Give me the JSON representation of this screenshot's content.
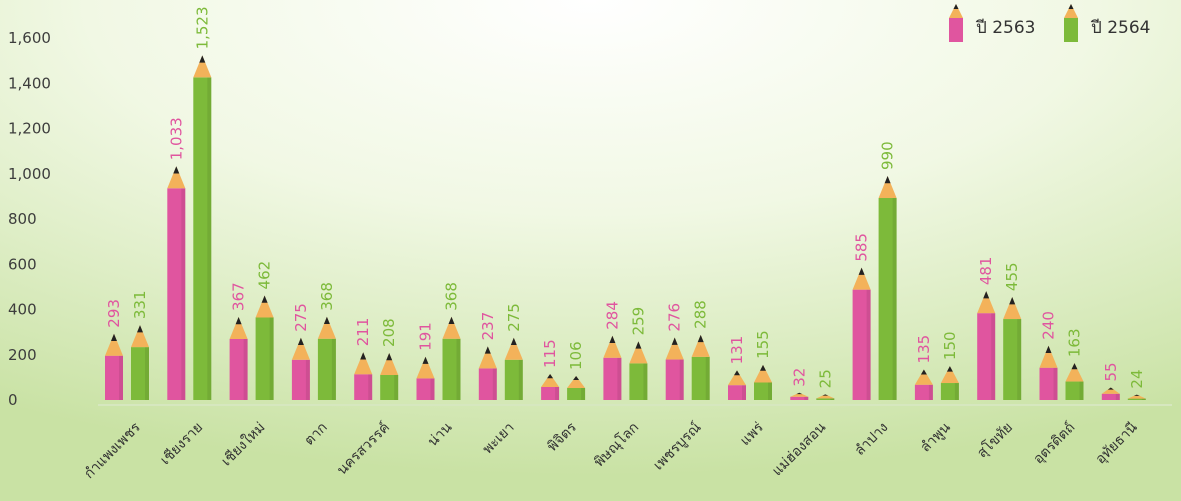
{
  "chart_data": {
    "type": "bar",
    "title": "",
    "xlabel": "",
    "ylabel": "",
    "ylim": [
      0,
      1600
    ],
    "yticks": [
      0,
      200,
      400,
      600,
      800,
      1000,
      1200,
      1400,
      1600
    ],
    "ytick_labels": [
      "0",
      "200",
      "400",
      "600",
      "800",
      "1,000",
      "1,200",
      "1,400",
      "1,600"
    ],
    "grid": false,
    "legend_position": "top-right",
    "bar_style": "pencil",
    "categories": [
      "กำแพงเพชร",
      "เชียงราย",
      "เชียงใหม่",
      "ตาก",
      "นครสวรรค์",
      "น่าน",
      "พะเยา",
      "พิจิตร",
      "พิษณุโลก",
      "เพชรบูรณ์",
      "แพร่",
      "แม่ฮ่องสอน",
      "ลำปาง",
      "ลำพูน",
      "สุโขทัย",
      "อุตรดิตถ์",
      "อุทัยธานี"
    ],
    "series": [
      {
        "name": "ปี 2563",
        "color": "#e0559f",
        "values": [
          293,
          1033,
          367,
          275,
          211,
          191,
          237,
          115,
          284,
          276,
          131,
          32,
          585,
          135,
          481,
          240,
          55
        ],
        "labels": [
          "293",
          "1,033",
          "367",
          "275",
          "211",
          "191",
          "237",
          "115",
          "284",
          "276",
          "131",
          "32",
          "585",
          "135",
          "481",
          "240",
          "55"
        ]
      },
      {
        "name": "ปี 2564",
        "color": "#7dba3a",
        "values": [
          331,
          1523,
          462,
          368,
          208,
          368,
          275,
          106,
          259,
          288,
          155,
          25,
          990,
          150,
          455,
          163,
          24
        ],
        "labels": [
          "331",
          "1,523",
          "462",
          "368",
          "208",
          "368",
          "275",
          "106",
          "259",
          "288",
          "155",
          "25",
          "990",
          "150",
          "455",
          "163",
          "24"
        ]
      }
    ]
  },
  "colors": {
    "background_light": "#ffffff",
    "background_green": "#c9e2a4",
    "pencil_wood": "#f3b25a",
    "pencil_lead": "#222222",
    "pink": "#e0559f",
    "green": "#7dba3a"
  }
}
